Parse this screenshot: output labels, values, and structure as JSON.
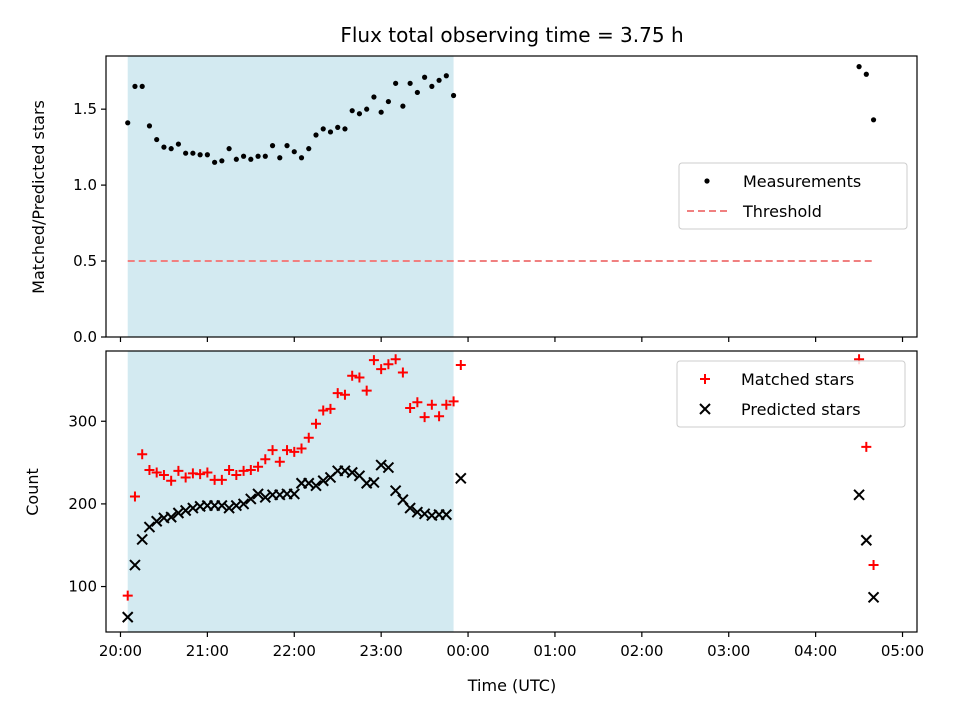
{
  "chart_data": [
    {
      "type": "scatter",
      "title": "Flux total observing time = 3.75 h",
      "xlabel": "",
      "ylabel": "Matched/Predicted stars",
      "xlim": [
        "19:50",
        "05:10"
      ],
      "ylim": [
        0,
        1.85
      ],
      "yticks": [
        0.0,
        0.5,
        1.0,
        1.5
      ],
      "ytick_labels": [
        "0.0",
        "0.5",
        "1.0",
        "1.5"
      ],
      "shaded_interval": [
        "20:05",
        "23:50"
      ],
      "shaded_color": "#d3eaf1",
      "legend_position": "center-right",
      "series": [
        {
          "name": "Measurements",
          "marker": "dot",
          "color": "#000000",
          "points": [
            [
              "20:05",
              1.41
            ],
            [
              "20:10",
              1.65
            ],
            [
              "20:15",
              1.65
            ],
            [
              "20:20",
              1.39
            ],
            [
              "20:25",
              1.3
            ],
            [
              "20:30",
              1.25
            ],
            [
              "20:35",
              1.24
            ],
            [
              "20:40",
              1.27
            ],
            [
              "20:45",
              1.21
            ],
            [
              "20:50",
              1.21
            ],
            [
              "20:55",
              1.2
            ],
            [
              "21:00",
              1.2
            ],
            [
              "21:05",
              1.15
            ],
            [
              "21:10",
              1.16
            ],
            [
              "21:15",
              1.24
            ],
            [
              "21:20",
              1.17
            ],
            [
              "21:25",
              1.19
            ],
            [
              "21:30",
              1.17
            ],
            [
              "21:35",
              1.19
            ],
            [
              "21:40",
              1.19
            ],
            [
              "21:45",
              1.26
            ],
            [
              "21:50",
              1.18
            ],
            [
              "21:55",
              1.26
            ],
            [
              "22:00",
              1.22
            ],
            [
              "22:05",
              1.18
            ],
            [
              "22:10",
              1.24
            ],
            [
              "22:15",
              1.33
            ],
            [
              "22:20",
              1.37
            ],
            [
              "22:25",
              1.35
            ],
            [
              "22:30",
              1.38
            ],
            [
              "22:35",
              1.37
            ],
            [
              "22:40",
              1.49
            ],
            [
              "22:45",
              1.47
            ],
            [
              "22:50",
              1.5
            ],
            [
              "22:55",
              1.58
            ],
            [
              "23:00",
              1.48
            ],
            [
              "23:05",
              1.55
            ],
            [
              "23:10",
              1.67
            ],
            [
              "23:15",
              1.52
            ],
            [
              "23:20",
              1.67
            ],
            [
              "23:25",
              1.61
            ],
            [
              "23:30",
              1.71
            ],
            [
              "23:35",
              1.65
            ],
            [
              "23:40",
              1.69
            ],
            [
              "23:45",
              1.72
            ],
            [
              "23:50",
              1.59
            ],
            [
              "04:30",
              1.78
            ],
            [
              "04:35",
              1.73
            ],
            [
              "04:40",
              1.43
            ]
          ]
        },
        {
          "name": "Threshold",
          "marker": "dashed-line",
          "color": "#f08080",
          "points": [
            [
              "20:05",
              0.5
            ],
            [
              "04:40",
              0.5
            ]
          ]
        }
      ]
    },
    {
      "type": "scatter",
      "title": "",
      "xlabel": "Time (UTC)",
      "ylabel": "Count",
      "xlim": [
        "19:50",
        "05:10"
      ],
      "ylim": [
        45,
        385
      ],
      "yticks": [
        100,
        200,
        300
      ],
      "ytick_labels": [
        "100",
        "200",
        "300"
      ],
      "xticks": [
        "20:00",
        "21:00",
        "22:00",
        "23:00",
        "00:00",
        "01:00",
        "02:00",
        "03:00",
        "04:00",
        "05:00"
      ],
      "shaded_interval": [
        "20:05",
        "23:50"
      ],
      "shaded_color": "#d3eaf1",
      "legend_position": "top-right",
      "series": [
        {
          "name": "Matched stars",
          "marker": "plus",
          "color": "#ff0000",
          "points": [
            [
              "20:05",
              89
            ],
            [
              "20:10",
              209
            ],
            [
              "20:15",
              260
            ],
            [
              "20:20",
              241
            ],
            [
              "20:25",
              238
            ],
            [
              "20:30",
              235
            ],
            [
              "20:35",
              228
            ],
            [
              "20:40",
              240
            ],
            [
              "20:45",
              232
            ],
            [
              "20:50",
              237
            ],
            [
              "20:55",
              236
            ],
            [
              "21:00",
              238
            ],
            [
              "21:05",
              229
            ],
            [
              "21:10",
              229
            ],
            [
              "21:15",
              241
            ],
            [
              "21:20",
              235
            ],
            [
              "21:25",
              240
            ],
            [
              "21:30",
              241
            ],
            [
              "21:35",
              245
            ],
            [
              "21:40",
              254
            ],
            [
              "21:45",
              265
            ],
            [
              "21:50",
              251
            ],
            [
              "21:55",
              265
            ],
            [
              "22:00",
              263
            ],
            [
              "22:05",
              267
            ],
            [
              "22:10",
              280
            ],
            [
              "22:15",
              297
            ],
            [
              "22:20",
              313
            ],
            [
              "22:25",
              315
            ],
            [
              "22:30",
              334
            ],
            [
              "22:35",
              332
            ],
            [
              "22:40",
              355
            ],
            [
              "22:45",
              353
            ],
            [
              "22:50",
              337
            ],
            [
              "22:55",
              374
            ],
            [
              "23:00",
              363
            ],
            [
              "23:05",
              369
            ],
            [
              "23:10",
              375
            ],
            [
              "23:15",
              359
            ],
            [
              "23:20",
              316
            ],
            [
              "23:25",
              323
            ],
            [
              "23:30",
              305
            ],
            [
              "23:35",
              320
            ],
            [
              "23:40",
              306
            ],
            [
              "23:45",
              320
            ],
            [
              "23:50",
              324
            ],
            [
              "23:55",
              368
            ],
            [
              "04:30",
              375
            ],
            [
              "04:35",
              269
            ],
            [
              "04:40",
              126
            ]
          ]
        },
        {
          "name": "Predicted stars",
          "marker": "x",
          "color": "#000000",
          "points": [
            [
              "20:05",
              63
            ],
            [
              "20:10",
              126
            ],
            [
              "20:15",
              157
            ],
            [
              "20:20",
              172
            ],
            [
              "20:25",
              179
            ],
            [
              "20:30",
              183
            ],
            [
              "20:35",
              184
            ],
            [
              "20:40",
              189
            ],
            [
              "20:45",
              192
            ],
            [
              "20:50",
              195
            ],
            [
              "20:55",
              197
            ],
            [
              "21:00",
              198
            ],
            [
              "21:05",
              198
            ],
            [
              "21:10",
              198
            ],
            [
              "21:15",
              195
            ],
            [
              "21:20",
              198
            ],
            [
              "21:25",
              200
            ],
            [
              "21:30",
              206
            ],
            [
              "21:35",
              212
            ],
            [
              "21:40",
              208
            ],
            [
              "21:45",
              211
            ],
            [
              "21:50",
              211
            ],
            [
              "21:55",
              212
            ],
            [
              "22:00",
              212
            ],
            [
              "22:05",
              225
            ],
            [
              "22:10",
              225
            ],
            [
              "22:15",
              222
            ],
            [
              "22:20",
              228
            ],
            [
              "22:25",
              232
            ],
            [
              "22:30",
              240
            ],
            [
              "22:35",
              240
            ],
            [
              "22:40",
              238
            ],
            [
              "22:45",
              234
            ],
            [
              "22:50",
              225
            ],
            [
              "22:55",
              226
            ],
            [
              "23:00",
              247
            ],
            [
              "23:05",
              244
            ],
            [
              "23:10",
              216
            ],
            [
              "23:15",
              205
            ],
            [
              "23:20",
              195
            ],
            [
              "23:25",
              190
            ],
            [
              "23:30",
              188
            ],
            [
              "23:35",
              186
            ],
            [
              "23:40",
              187
            ],
            [
              "23:45",
              187
            ],
            [
              "23:55",
              231
            ],
            [
              "04:30",
              211
            ],
            [
              "04:35",
              156
            ],
            [
              "04:40",
              87
            ]
          ]
        }
      ]
    }
  ]
}
